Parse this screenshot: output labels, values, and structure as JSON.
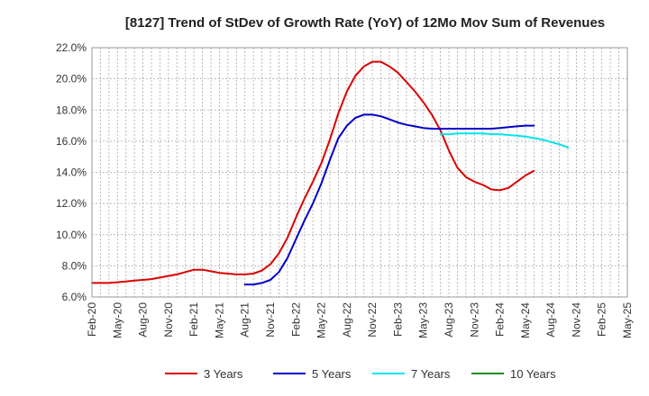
{
  "chart_data": {
    "type": "line",
    "title": "[8127]  Trend of StDev of Growth Rate (YoY) of 12Mo Mov Sum of Revenues",
    "xlabel": "",
    "ylabel": "",
    "ylim": [
      6.0,
      22.0
    ],
    "y_ticks": [
      6.0,
      8.0,
      10.0,
      12.0,
      14.0,
      16.0,
      18.0,
      20.0,
      22.0
    ],
    "y_tick_labels": [
      "6.0%",
      "8.0%",
      "10.0%",
      "12.0%",
      "14.0%",
      "16.0%",
      "18.0%",
      "20.0%",
      "22.0%"
    ],
    "x_tick_labels": [
      "Feb-20",
      "May-20",
      "Aug-20",
      "Nov-20",
      "Feb-21",
      "May-21",
      "Aug-21",
      "Nov-21",
      "Feb-22",
      "May-22",
      "Aug-22",
      "Nov-22",
      "Feb-23",
      "May-23",
      "Aug-23",
      "Nov-23",
      "Feb-24",
      "May-24",
      "Aug-24",
      "Nov-24",
      "Feb-25",
      "May-25"
    ],
    "grid": true,
    "legend_position": "bottom",
    "series": [
      {
        "name": "3 Years",
        "color": "#dd0000",
        "start_index": 0,
        "values": [
          6.9,
          6.9,
          6.9,
          6.95,
          7.0,
          7.05,
          7.1,
          7.15,
          7.25,
          7.35,
          7.45,
          7.6,
          7.75,
          7.75,
          7.65,
          7.55,
          7.5,
          7.45,
          7.45,
          7.5,
          7.7,
          8.1,
          8.8,
          9.8,
          11.1,
          12.3,
          13.4,
          14.6,
          16.1,
          17.8,
          19.2,
          20.2,
          20.8,
          21.1,
          21.1,
          20.8,
          20.4,
          19.8,
          19.2,
          18.5,
          17.7,
          16.7,
          15.4,
          14.3,
          13.7,
          13.4,
          13.2,
          12.9,
          12.85,
          13.0,
          13.4,
          13.8,
          14.1
        ]
      },
      {
        "name": "5 Years",
        "color": "#0000cc",
        "start_index": 18,
        "values": [
          6.8,
          6.8,
          6.9,
          7.1,
          7.6,
          8.5,
          9.7,
          10.9,
          12.0,
          13.3,
          14.8,
          16.2,
          17.0,
          17.5,
          17.7,
          17.7,
          17.6,
          17.4,
          17.2,
          17.05,
          16.95,
          16.85,
          16.8,
          16.8,
          16.8,
          16.8,
          16.8,
          16.8,
          16.8,
          16.8,
          16.85,
          16.9,
          16.95,
          17.0,
          17.0
        ]
      },
      {
        "name": "7 Years",
        "color": "#00e5ee",
        "start_index": 41,
        "values": [
          16.45,
          16.45,
          16.5,
          16.5,
          16.5,
          16.5,
          16.45,
          16.45,
          16.4,
          16.35,
          16.3,
          16.2,
          16.1,
          15.95,
          15.8,
          15.6
        ]
      },
      {
        "name": "10 Years",
        "color": "#228b22",
        "start_index": 0,
        "values": []
      }
    ]
  }
}
